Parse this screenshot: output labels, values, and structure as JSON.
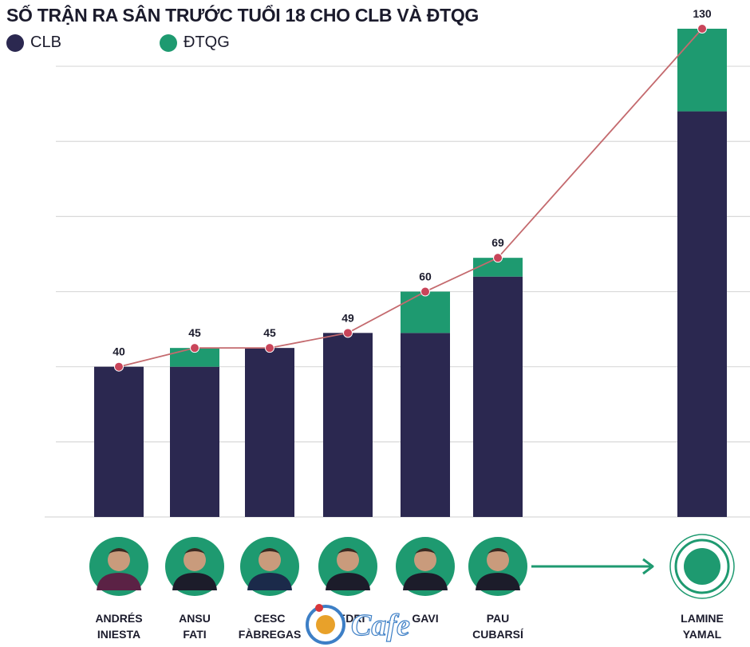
{
  "colors": {
    "clb": "#2b2850",
    "dtqg": "#1e9a70",
    "line": "#c46a6e",
    "point": "#c9455a",
    "grid": "#d9d9d9",
    "text": "#1b1b2c"
  },
  "icons": {
    "player_photo": "person-avatar-icon",
    "arrow": "arrow-right-icon",
    "logo": "cafe-logo-icon"
  },
  "logo_text": "Cafe",
  "chart_data": {
    "type": "bar",
    "stacked": true,
    "title": "SỐ TRẬN RA SÂN TRƯỚC TUỔI 18 CHO CLB VÀ ĐTQG",
    "xlabel": "",
    "ylabel": "",
    "ylim": [
      0,
      130
    ],
    "grid": true,
    "legend_position": "top-left",
    "categories": [
      [
        "ANDRÉS",
        "INIESTA"
      ],
      [
        "ANSU",
        "FATI"
      ],
      [
        "CESC",
        "FÀBREGAS"
      ],
      [
        "PEDRI",
        ""
      ],
      [
        "GAVI",
        ""
      ],
      [
        "PAU",
        "CUBARSÍ"
      ],
      [
        "LAMINE",
        "YAMAL"
      ]
    ],
    "series": [
      {
        "name": "CLB",
        "values": [
          40,
          40,
          45,
          49,
          49,
          64,
          108
        ]
      },
      {
        "name": "ĐTQG",
        "values": [
          0,
          5,
          0,
          0,
          11,
          5,
          22
        ]
      }
    ],
    "totals": [
      40,
      45,
      45,
      49,
      60,
      69,
      130
    ],
    "total_labels": [
      "40",
      "45",
      "45",
      "49",
      "60",
      "69",
      "130"
    ]
  }
}
